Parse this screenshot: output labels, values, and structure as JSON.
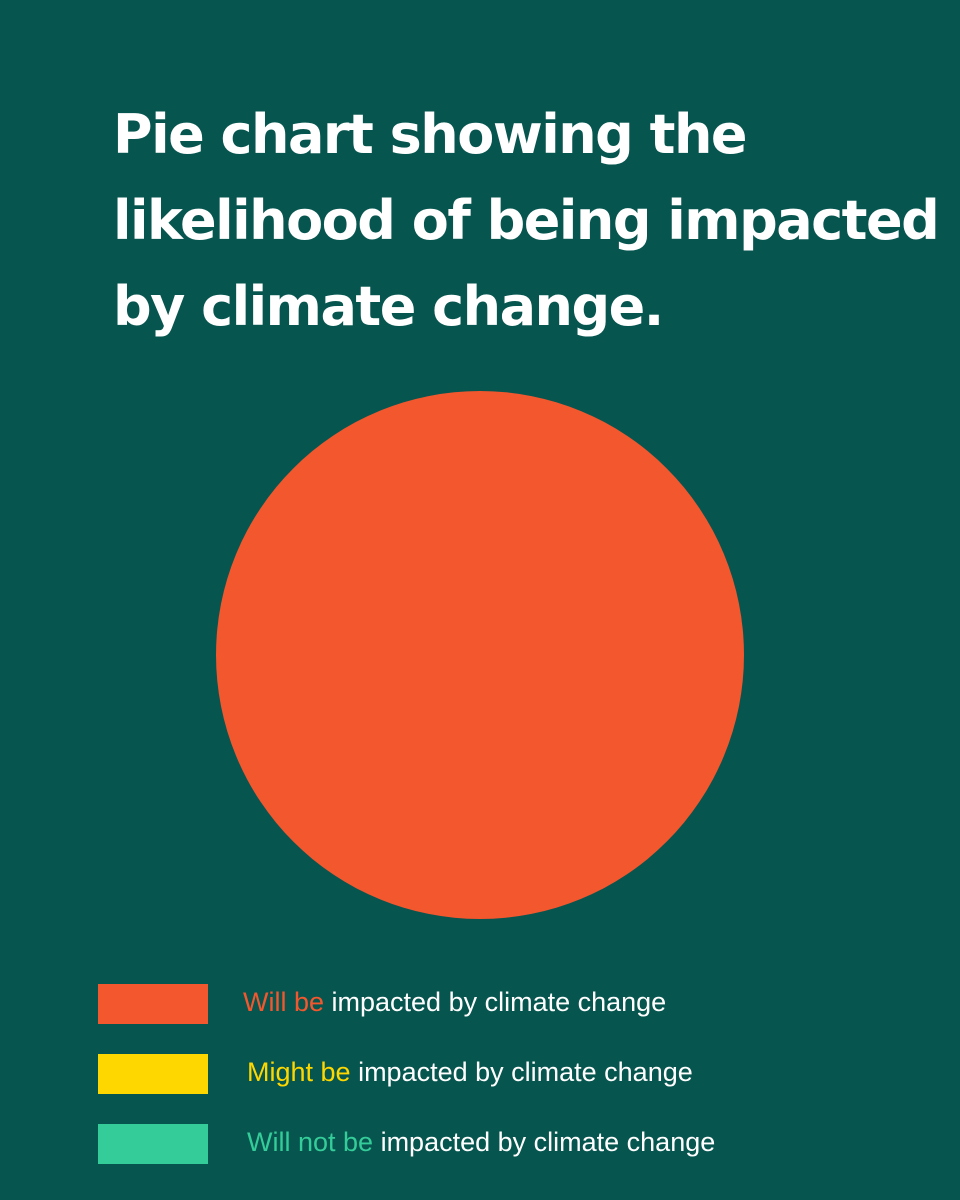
{
  "title_lines": [
    "Pie chart showing the",
    "likelihood of being impacted",
    "by climate change."
  ],
  "colors": {
    "background": "#07554f",
    "will_be": "#f2572e",
    "might_be": "#fed700",
    "will_not_be": "#34cc98"
  },
  "chart_data": {
    "type": "pie",
    "title": "Pie chart showing the likelihood of being impacted by climate change.",
    "slices": [
      {
        "label": "Will be impacted by climate change",
        "value": 100,
        "color": "#f2572e"
      },
      {
        "label": "Might be impacted by climate change",
        "value": 0,
        "color": "#fed700"
      },
      {
        "label": "Will not be impacted by climate change",
        "value": 0,
        "color": "#34cc98"
      }
    ],
    "legend_position": "bottom-left"
  },
  "legend": [
    {
      "highlight": "Will be",
      "rest": " impacted by climate change",
      "color": "#f2572e"
    },
    {
      "highlight": "Might be",
      "rest": " impacted by climate change",
      "color": "#fed700"
    },
    {
      "highlight": "Will not be",
      "rest": " impacted by climate change",
      "color": "#34cc98"
    }
  ]
}
